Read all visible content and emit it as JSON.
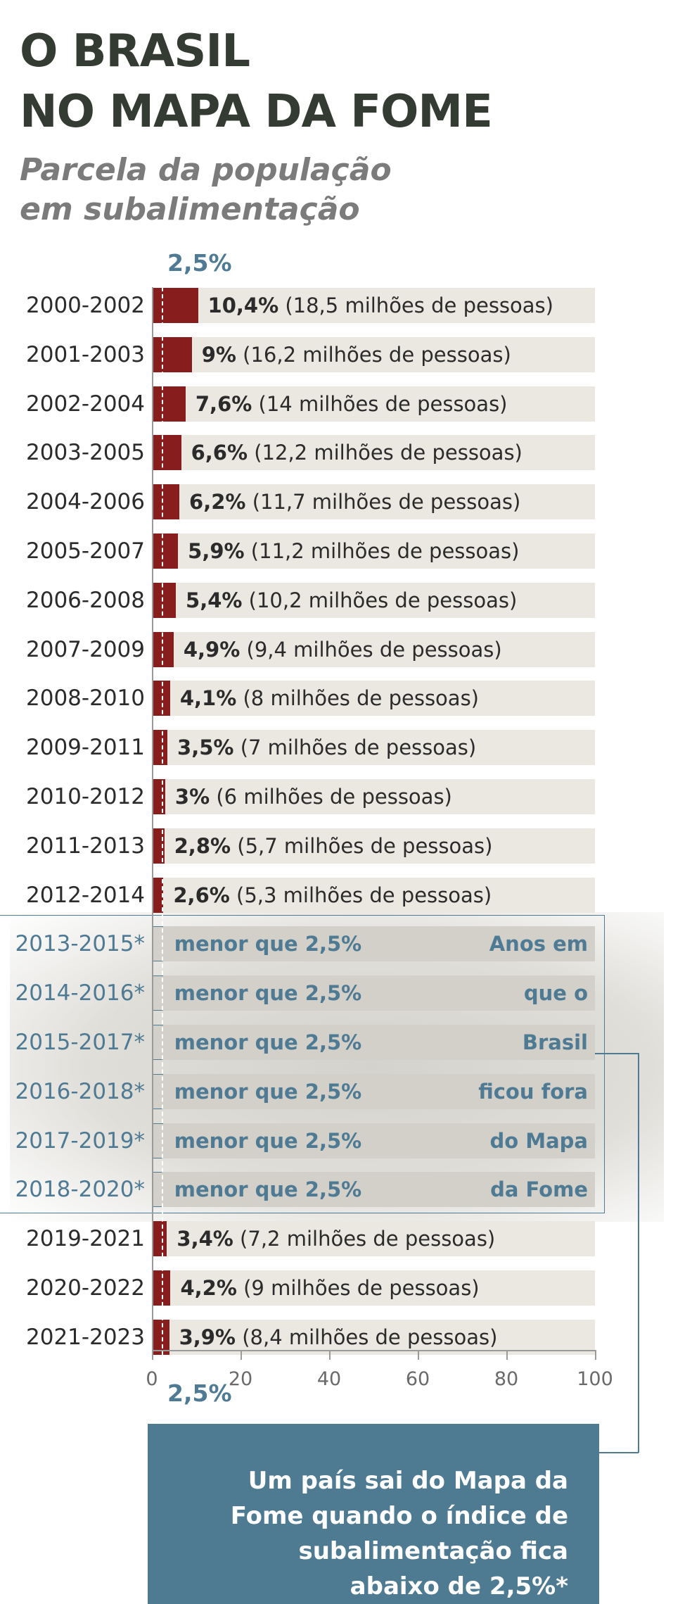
{
  "title": {
    "line1": "O BRASIL",
    "line2": "NO MAPA DA FOME"
  },
  "subtitle": {
    "line1": "Parcela da população",
    "line2": "em subalimentação"
  },
  "threshold_label": "2,5%",
  "out_label": "menor que 2,5%",
  "side_note": [
    "Anos em",
    "que o",
    "Brasil",
    "ficou fora",
    "do Mapa",
    "da Fome"
  ],
  "note_box": {
    "line1": "Um país sai do Mapa da",
    "line2": "Fome quando o índice de",
    "line3": "subalimentação fica",
    "line4": "abaixo de 2,5%*"
  },
  "colors": {
    "bar": "#881d1e",
    "accent": "#4f7a93",
    "track": "#ebe8e1",
    "title": "#343b33"
  },
  "chart_data": {
    "type": "bar",
    "orientation": "horizontal",
    "categories": [
      "2000-2002",
      "2001-2003",
      "2002-2004",
      "2003-2005",
      "2004-2006",
      "2005-2007",
      "2006-2008",
      "2007-2009",
      "2008-2010",
      "2009-2011",
      "2010-2012",
      "2011-2013",
      "2012-2014",
      "2013-2015*",
      "2014-2016*",
      "2015-2017*",
      "2016-2018*",
      "2017-2019*",
      "2018-2020*",
      "2019-2021",
      "2020-2022",
      "2021-2023"
    ],
    "values": [
      10.4,
      9,
      7.6,
      6.6,
      6.2,
      5.9,
      5.4,
      4.9,
      4.1,
      3.5,
      3,
      2.8,
      2.6,
      null,
      null,
      null,
      null,
      null,
      null,
      3.4,
      4.2,
      3.9
    ],
    "value_labels": [
      "10,4%",
      "9%",
      "7,6%",
      "6,6%",
      "6,2%",
      "5,9%",
      "5,4%",
      "4,9%",
      "4,1%",
      "3,5%",
      "3%",
      "2,8%",
      "2,6%",
      "",
      "",
      "",
      "",
      "",
      "",
      "3,4%",
      "4,2%",
      "3,9%"
    ],
    "people_labels": [
      "(18,5 milhões de pessoas)",
      "(16,2 milhões de pessoas)",
      "(14 milhões de pessoas)",
      "(12,2 milhões de pessoas)",
      "(11,7 milhões de pessoas)",
      "(11,2 milhões de pessoas)",
      "(10,2 milhões de pessoas)",
      "(9,4 milhões de pessoas)",
      "(8 milhões de pessoas)",
      "(7 milhões de pessoas)",
      "(6 milhões de pessoas)",
      "(5,7 milhões de pessoas)",
      "(5,3 milhões de pessoas)",
      "",
      "",
      "",
      "",
      "",
      "",
      "(7,2 milhões de pessoas)",
      "(9 milhões de pessoas)",
      "(8,4 milhões de pessoas)"
    ],
    "out_of_map": [
      false,
      false,
      false,
      false,
      false,
      false,
      false,
      false,
      false,
      false,
      false,
      false,
      false,
      true,
      true,
      true,
      true,
      true,
      true,
      false,
      false,
      false
    ],
    "xlim": [
      0,
      100
    ],
    "xticks": [
      0,
      20,
      40,
      60,
      80,
      100
    ],
    "threshold": 2.5
  }
}
